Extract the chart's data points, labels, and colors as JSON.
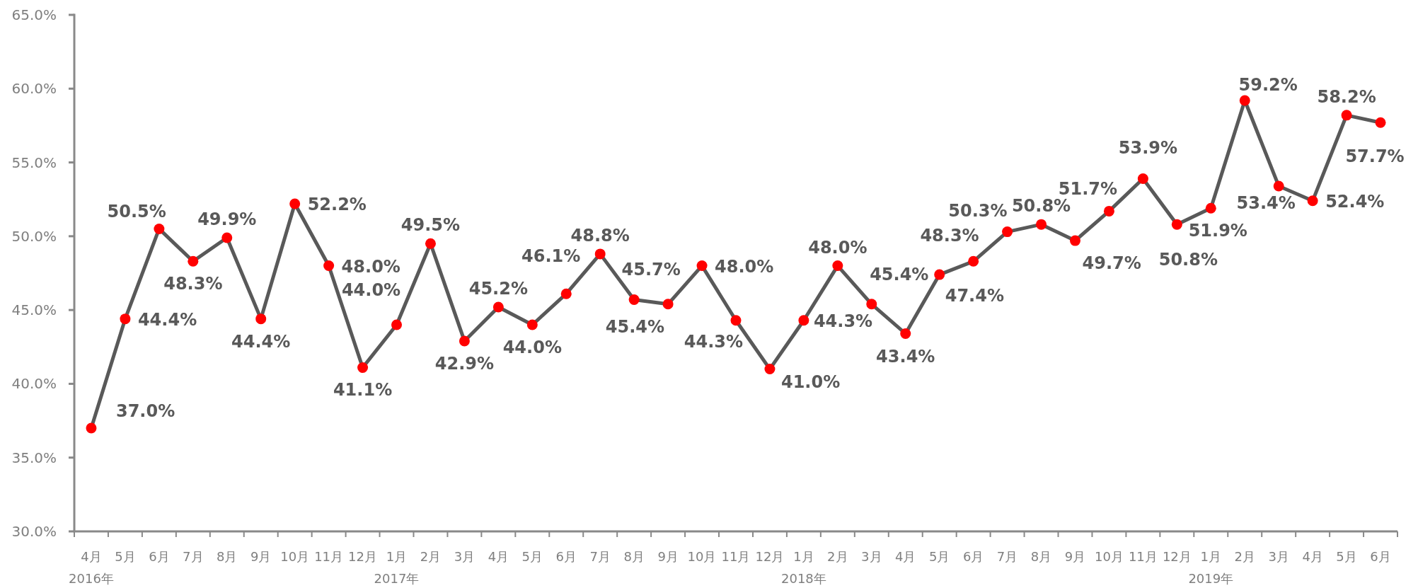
{
  "chart_data": {
    "type": "line",
    "categories": [
      "4月\n2016年",
      "5月",
      "6月",
      "7月",
      "8月",
      "9月",
      "10月",
      "11月",
      "12月",
      "1月\n2017年",
      "2月",
      "3月",
      "4月",
      "5月",
      "6月",
      "7月",
      "8月",
      "9月",
      "10月",
      "11月",
      "12月",
      "1月\n2018年",
      "2月",
      "3月",
      "4月",
      "5月",
      "6月",
      "7月",
      "8月",
      "9月",
      "10月",
      "11月",
      "12月",
      "1月\n2019年",
      "2月",
      "3月",
      "4月",
      "5月",
      "6月"
    ],
    "series": [
      {
        "color": "#595959",
        "colors": [
          "#ff0000",
          "#ff0000",
          "#ff0000",
          "#ff0000",
          "#ff0000",
          "#ff0000",
          "#ff0000",
          "#ff0000",
          "#ff0000",
          "#ff0000",
          "#ff0000",
          "#ff0000",
          "#ff0000",
          "#ff0000",
          "#ff0000",
          "#ff0000",
          "#ff0000",
          "#ff0000",
          "#ff0000",
          "#ff0000",
          "#ff0000",
          "#ff0000",
          "#ff0000",
          "#ff0000",
          "#ff0000",
          "#ff0000",
          "#ff0000",
          "#ff0000",
          "#ff0000",
          "#ff0000",
          "#ff0000",
          "#ff0000",
          "#ff0000",
          "#ff0000",
          "#ff0000",
          "#ff0000",
          "#ff0000",
          "#ff0000",
          "#ff0000"
        ],
        "values": [
          37.0,
          44.4,
          50.5,
          48.3,
          49.9,
          44.4,
          52.2,
          48.0,
          41.1,
          44.0,
          49.5,
          42.9,
          45.2,
          44.0,
          46.1,
          48.8,
          45.7,
          45.4,
          48.0,
          44.3,
          41.0,
          44.3,
          48.0,
          45.4,
          43.4,
          47.4,
          48.3,
          50.3,
          50.8,
          49.7,
          51.7,
          53.9,
          50.8,
          51.9,
          59.2,
          53.4,
          52.4,
          58.2,
          57.7
        ],
        "value_labels": [
          "37.0%",
          "44.4%",
          "50.5%",
          "48.3%",
          "49.9%",
          "44.4%",
          "52.2%",
          "48.0%",
          "41.1%",
          "44.0%",
          "49.5%",
          "42.9%",
          "45.2%",
          "44.0%",
          "46.1%",
          "48.8%",
          "45.7%",
          "45.4%",
          "48.0%",
          "44.3%",
          "41.0%",
          "44.3%",
          "48.0%",
          "45.4%",
          "43.4%",
          "47.4%",
          "48.3%",
          "50.3%",
          "50.8%",
          "49.7%",
          "51.7%",
          "53.9%",
          "50.8%",
          "51.9%",
          "59.2%",
          "53.4%",
          "52.4%",
          "58.2%",
          "57.7%"
        ]
      }
    ],
    "ylim": [
      30,
      65
    ],
    "yticks": [
      {
        "value": 30,
        "label": "30.0%"
      },
      {
        "value": 35,
        "label": "35.0%"
      },
      {
        "value": 40,
        "label": "40.0%"
      },
      {
        "value": 45,
        "label": "45.0%"
      },
      {
        "value": 50,
        "label": "50.0%"
      },
      {
        "value": 55,
        "label": "55.0%"
      },
      {
        "value": 60,
        "label": "60.0%"
      },
      {
        "value": 65,
        "label": "65.0%"
      }
    ],
    "marker": "circle",
    "line_style": "solid"
  }
}
